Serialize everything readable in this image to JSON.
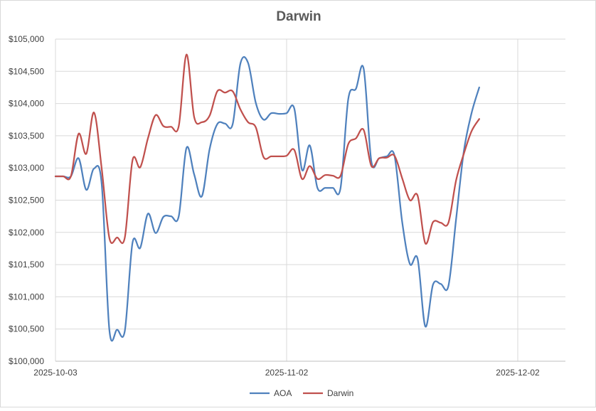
{
  "chart_data": {
    "type": "line",
    "title": "Darwin",
    "xlabel": "",
    "ylabel": "",
    "x_start": "2025-10-03",
    "x_end": "2025-12-02",
    "x_ticks": [
      "2025-10-03",
      "2025-11-02",
      "2025-12-02"
    ],
    "ylim": [
      100000,
      105000
    ],
    "y_ticks": [
      "$100,000",
      "$100,500",
      "$101,000",
      "$101,500",
      "$102,000",
      "$102,500",
      "$103,000",
      "$103,500",
      "$104,000",
      "$104,500",
      "$105,000"
    ],
    "grid": true,
    "legend_position": "bottom",
    "x": [
      "2025-10-03",
      "2025-10-04",
      "2025-10-05",
      "2025-10-06",
      "2025-10-07",
      "2025-10-08",
      "2025-10-09",
      "2025-10-10",
      "2025-10-11",
      "2025-10-12",
      "2025-10-13",
      "2025-10-14",
      "2025-10-15",
      "2025-10-16",
      "2025-10-17",
      "2025-10-18",
      "2025-10-19",
      "2025-10-20",
      "2025-10-21",
      "2025-10-22",
      "2025-10-23",
      "2025-10-24",
      "2025-10-25",
      "2025-10-26",
      "2025-10-27",
      "2025-10-28",
      "2025-10-29",
      "2025-10-30",
      "2025-10-31",
      "2025-11-01",
      "2025-11-02",
      "2025-11-03",
      "2025-11-04",
      "2025-11-05",
      "2025-11-06",
      "2025-11-07",
      "2025-11-08",
      "2025-11-09",
      "2025-11-10",
      "2025-11-11",
      "2025-11-12",
      "2025-11-13",
      "2025-11-14",
      "2025-11-15",
      "2025-11-16",
      "2025-11-17",
      "2025-11-18",
      "2025-11-19",
      "2025-11-20",
      "2025-11-21",
      "2025-11-22",
      "2025-11-23",
      "2025-11-24",
      "2025-11-25",
      "2025-11-26",
      "2025-11-27"
    ],
    "series": [
      {
        "name": "AOA",
        "color": "#4F81BD",
        "values": [
          102870,
          102870,
          102870,
          103150,
          102660,
          102990,
          102750,
          100480,
          100490,
          100470,
          101840,
          101760,
          102290,
          101990,
          102240,
          102250,
          102250,
          103310,
          102900,
          102560,
          103290,
          103680,
          103690,
          103680,
          104620,
          104630,
          104010,
          103750,
          103850,
          103840,
          103850,
          103920,
          102970,
          103350,
          102690,
          102690,
          102690,
          102690,
          104070,
          104230,
          104540,
          103100,
          103150,
          103180,
          103190,
          102160,
          101510,
          101590,
          100540,
          101190,
          101200,
          101170,
          102210,
          103260,
          103850,
          104250
        ]
      },
      {
        "name": "Darwin",
        "color": "#C0504D",
        "values": [
          102870,
          102870,
          102870,
          103530,
          103220,
          103860,
          102990,
          101910,
          101920,
          101920,
          103120,
          103010,
          103460,
          103820,
          103650,
          103640,
          103650,
          104760,
          103790,
          103710,
          103810,
          104190,
          104170,
          104190,
          103910,
          103710,
          103630,
          103170,
          103180,
          103180,
          103190,
          103280,
          102830,
          103030,
          102830,
          102890,
          102880,
          102880,
          103370,
          103460,
          103590,
          103030,
          103150,
          103160,
          103190,
          102840,
          102500,
          102570,
          101830,
          102160,
          102150,
          102150,
          102810,
          103220,
          103570,
          103760
        ]
      }
    ]
  }
}
